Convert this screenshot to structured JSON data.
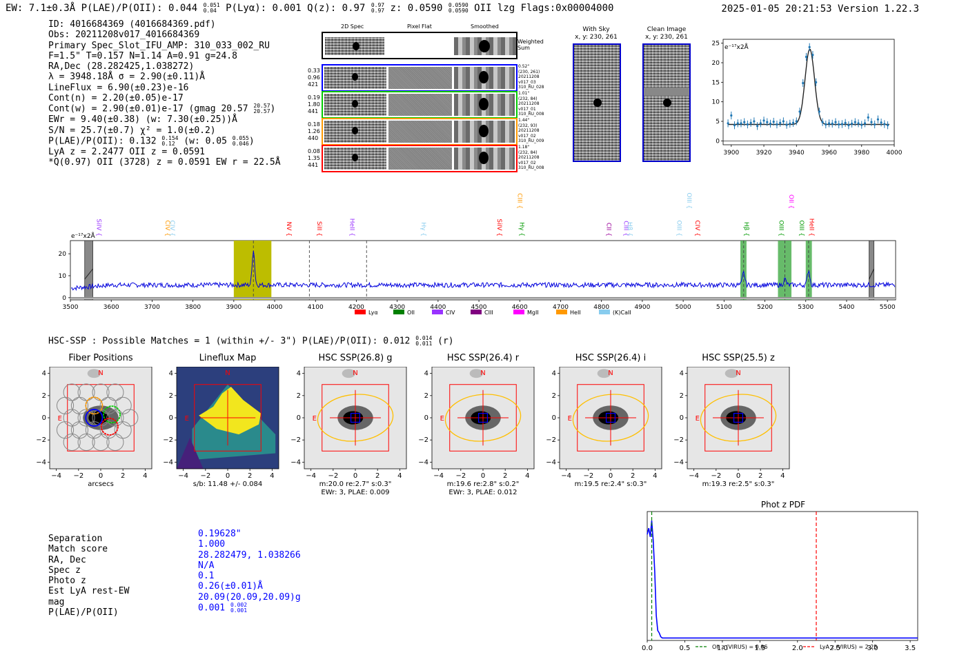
{
  "header": {
    "line": "EW: 7.1±0.3Å  P(LAE)/P(OII): 0.044 ",
    "ew_sup": "0.051",
    "ew_sub": "0.04",
    "plya": "  P(Lyα): 0.001  Q(z): 0.97 ",
    "qz_sup": "0.97",
    "qz_sub": "0.97",
    "z": "  z: 0.0590 ",
    "z_sup": "0.0590",
    "z_sub": "0.0590",
    "rest": " OII   lzg   Flags:0x00004000",
    "timestamp": "2025-01-05 20:21:53  Version 1.22.3"
  },
  "info": {
    "id": "ID: 4016684369 (4016684369.pdf)",
    "obs": "Obs: 20211208v017_4016684369",
    "primary": "Primary Spec_Slot_IFU_AMP: 310_033_002_RU",
    "params": "F=1.5\"  T=0.157  N=1.14  A=0.91  g=24.8",
    "radec": "RA,Dec (28.282425,1.038272)",
    "lambda": "λ = 3948.18Å  σ = 2.90(±0.11)Å",
    "lineflux": "LineFlux = 6.90(±0.23)e-16",
    "contn": "Cont(n) = 2.20(±0.05)e-17",
    "contw": "Cont(w) = 2.90(±0.01)e-17 (gmag 20.57 ",
    "contw_sup": "20.57",
    "contw_sub": "20.57",
    "contw_end": ")",
    "ewr": "EWr = 9.40(±0.38) (w: 7.30(±0.25))Å",
    "sn": "S/N = 25.7(±0.7)  χ² = 1.0(±0.2)",
    "plae": "P(LAE)/P(OII): 0.132 ",
    "plae_sup": "0.154",
    "plae_sub": "0.12",
    "plae_w": " (w: 0.05 ",
    "plae_w_sup": "0.055",
    "plae_w_sub": "0.046",
    "plae_end": ")",
    "lya": "LyA z = 2.2477  OII z = 0.0591",
    "q": "*Q(0.97) OII (3728) z = 0.0591  EW r = 22.5Å"
  },
  "cutouts": {
    "col_2d": "2D Spec",
    "col_flat": "Pixel Flat",
    "col_smooth": "Smoothed",
    "weighted": "Weighted Sum",
    "rows": [
      {
        "left": [
          "0.33",
          "0.96",
          "421"
        ],
        "right": [
          "0.52\"",
          "(230, 261)",
          "20211208",
          "v017_03",
          "310_RU_028"
        ],
        "color": "#0000ff"
      },
      {
        "left": [
          "0.19",
          "1.80",
          "441"
        ],
        "right": [
          "1.01\"",
          "(232, 84)",
          "20211208",
          "v017_01",
          "310_RU_008"
        ],
        "color": "#00cc00"
      },
      {
        "left": [
          "0.18",
          "1.26",
          "440"
        ],
        "right": [
          "1.44\"",
          "(232, 93)",
          "20211208",
          "v017_02",
          "310_RU_009"
        ],
        "color": "#ff9900"
      },
      {
        "left": [
          "0.08",
          "1.35",
          "441"
        ],
        "right": [
          "1.18\"",
          "(232, 84)",
          "20211208",
          "v017_02",
          "310_RU_008"
        ],
        "color": "#ff0000"
      }
    ]
  },
  "sky": {
    "with_sky": "With Sky",
    "with_sky_xy": "x, y: 230, 261",
    "clean": "Clean Image",
    "clean_xy": "x, y: 230, 261"
  },
  "chart_data": [
    {
      "type": "line",
      "name": "emission-line-fit",
      "ylabel_unit": "e⁻¹⁷x2Å",
      "xlim": [
        3895,
        4000
      ],
      "ylim": [
        -1,
        26
      ],
      "xticks": [
        3900,
        3920,
        3940,
        3960,
        3980,
        4000
      ],
      "yticks": [
        0,
        5,
        10,
        15,
        20,
        25
      ],
      "fit_center": 3948.18,
      "fit_sigma": 2.9,
      "fit_continuum": 4.2,
      "fit_peak": 23.5,
      "points_x": [
        3898,
        3900,
        3902,
        3904,
        3906,
        3908,
        3910,
        3912,
        3914,
        3916,
        3918,
        3920,
        3922,
        3924,
        3926,
        3928,
        3930,
        3932,
        3934,
        3936,
        3938,
        3940,
        3942,
        3944,
        3946,
        3948,
        3950,
        3952,
        3954,
        3956,
        3958,
        3960,
        3962,
        3964,
        3966,
        3968,
        3970,
        3972,
        3974,
        3976,
        3978,
        3980,
        3982,
        3984,
        3986,
        3988,
        3990,
        3992,
        3994,
        3996
      ],
      "points_y": [
        4.5,
        6.5,
        4.0,
        4.5,
        4.5,
        4.8,
        4.2,
        4.6,
        5.0,
        3.8,
        4.5,
        5.2,
        4.8,
        4.4,
        4.9,
        4.2,
        4.6,
        5.0,
        4.1,
        4.4,
        4.6,
        5.0,
        7.5,
        14.8,
        21.5,
        24.0,
        22.0,
        15.0,
        7.5,
        4.8,
        4.2,
        4.5,
        4.4,
        4.8,
        4.2,
        4.3,
        4.6,
        4.0,
        4.4,
        4.8,
        4.5,
        4.1,
        4.5,
        6.0,
        4.8,
        4.2,
        5.5,
        4.7,
        4.3,
        4.0
      ],
      "errors": [
        1.0,
        1.0,
        1.0,
        1.0,
        1.0,
        1.0,
        1.0,
        1.0,
        1.0,
        1.0,
        1.0,
        1.0,
        1.0,
        1.0,
        1.0,
        1.0,
        1.0,
        1.0,
        1.0,
        1.0,
        1.0,
        1.0,
        1.0,
        1.0,
        1.0,
        1.0,
        1.0,
        1.0,
        1.0,
        1.0,
        1.0,
        1.0,
        1.0,
        1.0,
        1.0,
        1.0,
        1.0,
        1.0,
        1.0,
        1.0,
        1.0,
        1.0,
        1.0,
        1.0,
        1.0,
        1.0,
        1.0,
        1.0,
        1.0,
        1.0
      ]
    },
    {
      "type": "line",
      "name": "full-spectrum",
      "ylabel_unit": "e⁻¹⁷x2Å",
      "xlim": [
        3500,
        5520
      ],
      "ylim": [
        -1,
        26
      ],
      "xticks": [
        3500,
        3600,
        3700,
        3800,
        3900,
        4000,
        4100,
        4200,
        4300,
        4400,
        4500,
        4600,
        4700,
        4800,
        4900,
        5000,
        5100,
        5200,
        5300,
        5400,
        5500
      ],
      "yticks": [
        0,
        10,
        20
      ],
      "continuum_level": 5.8,
      "highlight_yellow": [
        3900,
        3992
      ],
      "highlight_green": [
        [
          5140,
          5155
        ],
        [
          5232,
          5265
        ],
        [
          5300,
          5315
        ]
      ],
      "hatched_gray": [
        [
          3535,
          3555
        ],
        [
          5455,
          5467
        ]
      ],
      "dashed_lines": [
        3948,
        4085,
        4225,
        5148,
        5249,
        5307
      ],
      "peaks": [
        {
          "x": 3948,
          "y": 22
        },
        {
          "x": 5148,
          "y": 11.5
        },
        {
          "x": 5249,
          "y": 8.5
        },
        {
          "x": 5307,
          "y": 12.5
        }
      ],
      "line_labels": [
        {
          "text": "SiIV",
          "x": 3560,
          "color": "#9933ff",
          "row": 0
        },
        {
          "text": "CIV",
          "x": 3728,
          "color": "#ff9900",
          "row": 0
        },
        {
          "text": "CIV",
          "x": 3740,
          "color": "#88ccee",
          "row": 0
        },
        {
          "text": "NV",
          "x": 4025,
          "color": "#ff0000",
          "row": 0
        },
        {
          "text": "SiII",
          "x": 4100,
          "color": "#ff0000",
          "row": 0
        },
        {
          "text": "HeII",
          "x": 4180,
          "color": "#9933ff",
          "row": 0
        },
        {
          "text": "Hγ",
          "x": 4355,
          "color": "#88ccee",
          "row": 0
        },
        {
          "text": "SiIV",
          "x": 4540,
          "color": "#ff0000",
          "row": 0
        },
        {
          "text": "Hγ",
          "x": 4595,
          "color": "#009900",
          "row": 0
        },
        {
          "text": "CIII",
          "x": 4590,
          "color": "#ff9900",
          "row": 1
        },
        {
          "text": "CII",
          "x": 4808,
          "color": "#990099",
          "row": 0
        },
        {
          "text": "CIII",
          "x": 4850,
          "color": "#9933ff",
          "row": 0
        },
        {
          "text": "Hβ",
          "x": 4860,
          "color": "#88ccee",
          "row": 0
        },
        {
          "text": "OIII",
          "x": 4980,
          "color": "#88ccee",
          "row": 0
        },
        {
          "text": "OIII",
          "x": 5005,
          "color": "#88ccee",
          "row": 1
        },
        {
          "text": "CIV",
          "x": 5025,
          "color": "#ff0000",
          "row": 0
        },
        {
          "text": "Hβ",
          "x": 5145,
          "color": "#009900",
          "row": 0
        },
        {
          "text": "OIII",
          "x": 5230,
          "color": "#009900",
          "row": 0
        },
        {
          "text": "OII",
          "x": 5255,
          "color": "#ff00ff",
          "row": 1
        },
        {
          "text": "OIII",
          "x": 5280,
          "color": "#009900",
          "row": 0
        },
        {
          "text": "HeII",
          "x": 5305,
          "color": "#ff0000",
          "row": 0
        }
      ],
      "legend": [
        {
          "label": "Lyα",
          "color": "#ff0000"
        },
        {
          "label": "OII",
          "color": "#008000"
        },
        {
          "label": "CIV",
          "color": "#9933ff"
        },
        {
          "label": "CIII",
          "color": "#800080"
        },
        {
          "label": "MgII",
          "color": "#ff00ff"
        },
        {
          "label": "HeII",
          "color": "#ff9900"
        },
        {
          "label": "(K)CaII",
          "color": "#88ccee"
        }
      ]
    },
    {
      "type": "line",
      "name": "phot-z-pdf",
      "title": "Phot z PDF",
      "xlim": [
        0,
        3.6
      ],
      "xticks": [
        0.0,
        0.5,
        1.0,
        1.5,
        2.0,
        2.5,
        3.0,
        3.5
      ],
      "xtick_labels": [
        "0.0",
        "0.5",
        "1.0",
        "1.5",
        "2.0",
        "2.5",
        "3.0",
        "3.5"
      ],
      "oii_z": 0.06,
      "lya_z": 2.25,
      "legend": [
        {
          "label": "OII z (VIRUS) = 0.06",
          "color": "#008000"
        },
        {
          "label": "LyA z (VIRUS) = 2.25",
          "color": "#ff0000"
        }
      ],
      "curve_x": [
        0.0,
        0.02,
        0.04,
        0.06,
        0.08,
        0.1,
        0.12,
        0.14,
        0.16,
        0.18,
        0.2,
        0.3,
        0.5,
        1.0,
        2.0,
        3.0,
        3.6
      ],
      "curve_y": [
        0.85,
        0.9,
        0.83,
        0.96,
        0.8,
        0.55,
        0.2,
        0.08,
        0.06,
        0.03,
        0.02,
        0.02,
        0.02,
        0.02,
        0.02,
        0.02,
        0.02
      ]
    }
  ],
  "hsc": {
    "title": "HSC-SSP : Possible Matches = 1 (within +/- 3\")  P(LAE)/P(OII): 0.012 ",
    "title_sup": "0.014",
    "title_sub": "0.011",
    "title_end": " (r)",
    "panels": [
      {
        "title": "Fiber Positions",
        "xlabel": "arcsecs",
        "cap1": "",
        "cap2": "",
        "kind": "fiber"
      },
      {
        "title": "Lineflux Map",
        "xlabel": "",
        "cap1": "s/b: 11.48 +/- 0.084",
        "cap2": "",
        "kind": "lineflux"
      },
      {
        "title": "HSC SSP(26.8) g",
        "xlabel": "",
        "cap1": "m:20.0  re:2.7\"  s:0.3\"",
        "cap2": "EWr: 3, PLAE: 0.009",
        "kind": "galaxy"
      },
      {
        "title": "HSC SSP(26.4) r",
        "xlabel": "",
        "cap1": "m:19.6  re:2.8\"  s:0.2\"",
        "cap2": "EWr: 3, PLAE: 0.012",
        "kind": "galaxy"
      },
      {
        "title": "HSC SSP(26.4) i",
        "xlabel": "",
        "cap1": "m:19.5  re:2.4\"  s:0.3\"",
        "cap2": "",
        "kind": "galaxy"
      },
      {
        "title": "HSC SSP(25.5) z",
        "xlabel": "",
        "cap1": "m:19.3  re:2.5\"  s:0.3\"",
        "cap2": "",
        "kind": "galaxy"
      }
    ],
    "compass_n": "N",
    "compass_e": "E",
    "axis_ticks": [
      "−4",
      "−2",
      "0",
      "2",
      "4"
    ],
    "axis_tick_values": [
      -4,
      -2,
      0,
      2,
      4
    ]
  },
  "match": {
    "labels": [
      "Separation",
      "Match score",
      "RA, Dec",
      "Spec z",
      "Photo z",
      "Est LyA rest-EW",
      "mag",
      "P(LAE)/P(OII)"
    ],
    "values": [
      "0.19628\"",
      "1.000",
      "28.282479, 1.038266",
      "N/A",
      "0.1",
      "0.26(±0.01)Å",
      "20.09(20.09,20.09)g",
      "0.001 "
    ],
    "plae_sup": "0.002",
    "plae_sub": "0.001"
  }
}
